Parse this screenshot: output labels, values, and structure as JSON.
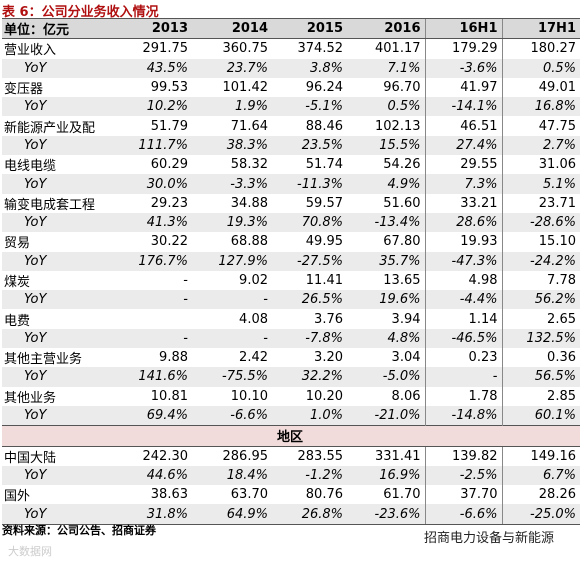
{
  "title": "表 6：公司分业务收入情况",
  "header": [
    "单位：亿元",
    "2013",
    "2014",
    "2015",
    "2016",
    "16H1",
    "17H1"
  ],
  "rows": [
    [
      "营业收入",
      "291.75",
      "360.75",
      "374.52",
      "401.17",
      "179.29",
      "180.27"
    ],
    [
      "YoY",
      "43.5%",
      "23.7%",
      "3.8%",
      "7.1%",
      "-3.6%",
      "0.5%"
    ],
    [
      "变压器",
      "99.53",
      "101.42",
      "96.24",
      "96.70",
      "41.97",
      "49.01"
    ],
    [
      "YoY",
      "10.2%",
      "1.9%",
      "-5.1%",
      "0.5%",
      "-14.1%",
      "16.8%"
    ],
    [
      "新能源产业及配",
      "51.79",
      "71.64",
      "88.46",
      "102.13",
      "46.51",
      "47.75"
    ],
    [
      "YoY",
      "111.7%",
      "38.3%",
      "23.5%",
      "15.5%",
      "27.4%",
      "2.7%"
    ],
    [
      "电线电缆",
      "60.29",
      "58.32",
      "51.74",
      "54.26",
      "29.55",
      "31.06"
    ],
    [
      "YoY",
      "30.0%",
      "-3.3%",
      "-11.3%",
      "4.9%",
      "7.3%",
      "5.1%"
    ],
    [
      "输变电成套工程",
      "29.23",
      "34.88",
      "59.57",
      "51.60",
      "33.21",
      "23.71"
    ],
    [
      "YoY",
      "41.3%",
      "19.3%",
      "70.8%",
      "-13.4%",
      "28.6%",
      "-28.6%"
    ],
    [
      "贸易",
      "30.22",
      "68.88",
      "49.95",
      "67.80",
      "19.93",
      "15.10"
    ],
    [
      "YoY",
      "176.7%",
      "127.9%",
      "-27.5%",
      "35.7%",
      "-47.3%",
      "-24.2%"
    ],
    [
      "煤炭",
      "-",
      "9.02",
      "11.41",
      "13.65",
      "4.98",
      "7.78"
    ],
    [
      "YoY",
      "-",
      "-",
      "26.5%",
      "19.6%",
      "-4.4%",
      "56.2%"
    ],
    [
      "电费",
      null,
      "4.08",
      "3.76",
      "3.94",
      "1.14",
      "2.65"
    ],
    [
      "YoY",
      "-",
      "-",
      "-7.8%",
      "4.8%",
      "-46.5%",
      "132.5%"
    ],
    [
      "其他主营业务",
      "9.88",
      "2.42",
      "3.20",
      "3.04",
      "0.23",
      "0.36"
    ],
    [
      "YoY",
      "141.6%",
      "-75.5%",
      "32.2%",
      "-5.0%",
      "-",
      "56.5%"
    ],
    [
      "其他业务",
      "10.81",
      "10.10",
      "10.20",
      "8.06",
      "1.78",
      "2.85"
    ],
    [
      "YoY",
      "69.4%",
      "-6.6%",
      "1.0%",
      "-21.0%",
      "-14.8%",
      "60.1%"
    ]
  ],
  "section": "地区",
  "region_rows": [
    [
      "中国大陆",
      "242.30",
      "286.95",
      "283.55",
      "331.41",
      "139.82",
      "149.16"
    ],
    [
      "YoY",
      "44.6%",
      "18.4%",
      "-1.2%",
      "16.9%",
      "-2.5%",
      "6.7%"
    ],
    [
      "国外",
      "38.63",
      "63.70",
      "80.76",
      "61.70",
      "37.70",
      "28.26"
    ],
    [
      "YoY",
      "31.8%",
      "64.9%",
      "26.8%",
      "-23.6%",
      "-6.6%",
      "-25.0%"
    ]
  ],
  "source": "资料来源：公司公告、招商证券",
  "watermark": "招商电力设备与新能源",
  "watermark2": "大数据网"
}
